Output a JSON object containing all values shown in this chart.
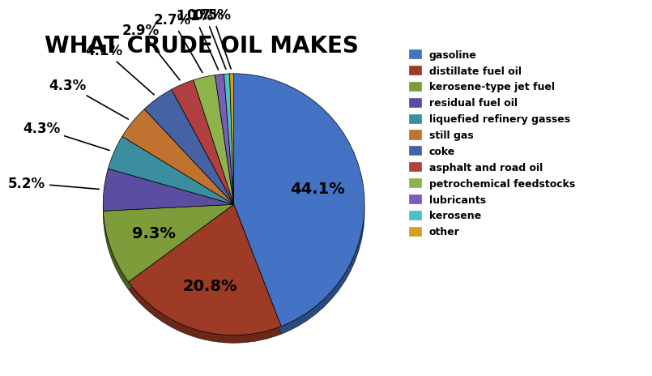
{
  "title": "WHAT CRUDE OIL MAKES",
  "labels": [
    "gasoline",
    "distillate fuel oil",
    "kerosene-type jet fuel",
    "residual fuel oil",
    "liquefied refinery gasses",
    "still gas",
    "coke",
    "asphalt and road oil",
    "petrochemical feedstocks",
    "lubricants",
    "kerosene",
    "other"
  ],
  "values": [
    44.1,
    20.8,
    9.3,
    5.2,
    4.3,
    4.3,
    4.1,
    2.9,
    2.7,
    1.1,
    0.7,
    0.5
  ],
  "colors": [
    "#4472C4",
    "#9E3B26",
    "#7D9D3A",
    "#5B4EA0",
    "#3B8E9E",
    "#C07230",
    "#4462A4",
    "#B04040",
    "#8DB44A",
    "#7B5CB8",
    "#4BBFC4",
    "#D4A020"
  ],
  "shadow_colors": [
    "#2A4A80",
    "#6B2818",
    "#4A6020",
    "#3A3070",
    "#246070",
    "#804A18",
    "#2A4070",
    "#782828",
    "#5A7828",
    "#503880",
    "#2A7880",
    "#906810"
  ],
  "startangle": 180,
  "background_color": "#ffffff",
  "title_fontsize": 20,
  "label_fontsize": 12,
  "inner_label_fontsize": 14,
  "shadow_depth": 0.06
}
